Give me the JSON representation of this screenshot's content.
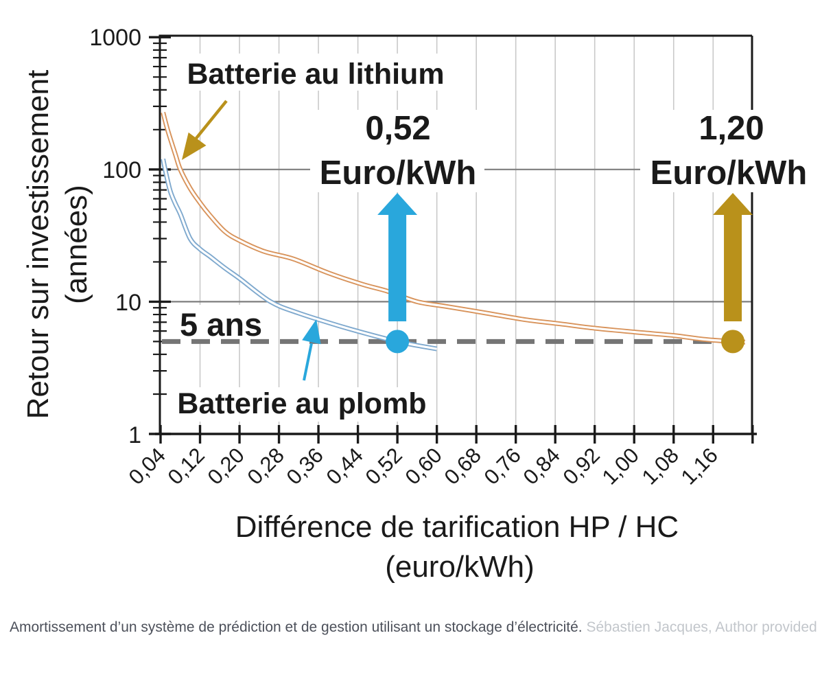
{
  "page": {
    "background": "#ffffff"
  },
  "chart_data": {
    "type": "line",
    "title": "",
    "grid": true,
    "x_axis": {
      "label_line1": "Différence de tarification HP / HC",
      "label_line2": "(euro/kWh)",
      "min": 0.04,
      "max": 1.24,
      "tick_step": 0.08,
      "tick_values": [
        0.04,
        0.12,
        0.2,
        0.28,
        0.36,
        0.44,
        0.52,
        0.6,
        0.68,
        0.76,
        0.84,
        0.92,
        1.0,
        1.08,
        1.16
      ],
      "tick_labels": [
        "0,04",
        "0,12",
        "0,20",
        "0,28",
        "0,36",
        "0,44",
        "0,52",
        "0,60",
        "0,68",
        "0,76",
        "0,84",
        "0,92",
        "1,00",
        "1,08",
        "1,16"
      ]
    },
    "y_axis": {
      "label_line1": "Retour sur investissement",
      "label_line2": "(années)",
      "scale": "log",
      "min": 1,
      "max": 1000,
      "tick_values": [
        1000,
        100,
        10,
        1
      ],
      "tick_labels": [
        "1000",
        "100",
        "10",
        "1"
      ]
    },
    "series": [
      {
        "name": "Batterie au lithium",
        "label_color": "#B9911B",
        "curve_color": "#D8935B",
        "points": [
          [
            0.045,
            270
          ],
          [
            0.055,
            195
          ],
          [
            0.07,
            130
          ],
          [
            0.08,
            100
          ],
          [
            0.1,
            72
          ],
          [
            0.12,
            56
          ],
          [
            0.14,
            45
          ],
          [
            0.17,
            34
          ],
          [
            0.2,
            29
          ],
          [
            0.25,
            24
          ],
          [
            0.31,
            21
          ],
          [
            0.38,
            16.5
          ],
          [
            0.45,
            13.5
          ],
          [
            0.5,
            12
          ],
          [
            0.56,
            10
          ],
          [
            0.62,
            9.2
          ],
          [
            0.7,
            8.2
          ],
          [
            0.78,
            7.3
          ],
          [
            0.85,
            6.8
          ],
          [
            0.92,
            6.3
          ],
          [
            1.0,
            5.9
          ],
          [
            1.08,
            5.55
          ],
          [
            1.14,
            5.2
          ],
          [
            1.2,
            5.0
          ],
          [
            1.225,
            4.95
          ]
        ]
      },
      {
        "name": "Batterie au plomb",
        "label_color": "#29A7DC",
        "curve_color": "#7FA9CE",
        "points": [
          [
            0.045,
            120
          ],
          [
            0.052,
            90
          ],
          [
            0.06,
            68
          ],
          [
            0.07,
            55
          ],
          [
            0.08,
            46
          ],
          [
            0.1,
            30
          ],
          [
            0.12,
            25
          ],
          [
            0.14,
            22
          ],
          [
            0.17,
            18
          ],
          [
            0.2,
            15
          ],
          [
            0.263,
            10
          ],
          [
            0.32,
            8.2
          ],
          [
            0.4,
            6.6
          ],
          [
            0.46,
            5.7
          ],
          [
            0.52,
            5.0
          ],
          [
            0.57,
            4.6
          ],
          [
            0.6,
            4.4
          ]
        ]
      }
    ],
    "annotations": {
      "threshold": {
        "label": "5 ans",
        "value": 5,
        "color": "#7A7A7A"
      },
      "plomb_marker": {
        "value_label": "0,52",
        "unit_label": "Euro/kWh",
        "x": 0.52,
        "y": 5,
        "color": "#29A7DC"
      },
      "lithium_marker": {
        "value_label": "1,20",
        "unit_label": "Euro/kWh",
        "x": 1.2,
        "y": 5,
        "color": "#B9911B"
      }
    },
    "colors": {
      "blue_accent": "#29A7DC",
      "gold_accent": "#B9911B",
      "curve_orange": "#D8935B",
      "curve_blue": "#7FA9CE",
      "gray_threshold": "#7A7A7A",
      "gridline": "#C9C9C9",
      "decade_line": "#7E7E7E"
    }
  },
  "caption": {
    "text": "Amortissement d’un système de prédiction et de gestion utilisant un stockage d’électricité.",
    "attribution": "Sébastien Jacques, Author provided"
  }
}
